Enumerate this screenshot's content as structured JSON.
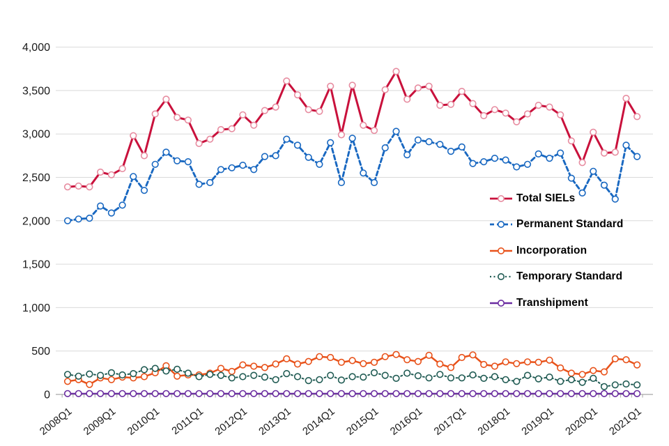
{
  "chart_data": {
    "type": "line",
    "title": "",
    "xlabel": "",
    "ylabel": "",
    "ylim": [
      0,
      4000
    ],
    "y_tick_step": 500,
    "grid": "horizontal",
    "legend_position": "inside-right",
    "y_tick_labels": [
      "0",
      "500",
      "1,000",
      "1,500",
      "2,000",
      "2,500",
      "3,000",
      "3,500",
      "4,000"
    ],
    "x_tick_labels": [
      "2008Q1",
      "2009Q1",
      "2010Q1",
      "2011Q1",
      "2012Q1",
      "2013Q1",
      "2014Q1",
      "2015Q1",
      "2016Q1",
      "2017Q1",
      "2018Q1",
      "2019Q1",
      "2020Q1",
      "2021Q1"
    ],
    "categories": [
      "2008Q1",
      "2008Q2",
      "2008Q3",
      "2008Q4",
      "2009Q1",
      "2009Q2",
      "2009Q3",
      "2009Q4",
      "2010Q1",
      "2010Q2",
      "2010Q3",
      "2010Q4",
      "2011Q1",
      "2011Q2",
      "2011Q3",
      "2011Q4",
      "2012Q1",
      "2012Q2",
      "2012Q3",
      "2012Q4",
      "2013Q1",
      "2013Q2",
      "2013Q3",
      "2013Q4",
      "2014Q1",
      "2014Q2",
      "2014Q3",
      "2014Q4",
      "2015Q1",
      "2015Q2",
      "2015Q3",
      "2015Q4",
      "2016Q1",
      "2016Q2",
      "2016Q3",
      "2016Q4",
      "2017Q1",
      "2017Q2",
      "2017Q3",
      "2017Q4",
      "2018Q1",
      "2018Q2",
      "2018Q3",
      "2018Q4",
      "2019Q1",
      "2019Q2",
      "2019Q3",
      "2019Q4",
      "2020Q1",
      "2020Q2",
      "2020Q3",
      "2020Q4",
      "2021Q1"
    ],
    "series": [
      {
        "name": "Total SIELs",
        "color": "#C9113C",
        "marker_color": "#E78CA0",
        "style": "solid",
        "values": [
          2390,
          2400,
          2390,
          2560,
          2530,
          2600,
          2980,
          2750,
          3230,
          3400,
          3190,
          3160,
          2890,
          2940,
          3050,
          3060,
          3220,
          3100,
          3270,
          3310,
          3610,
          3450,
          3280,
          3260,
          3550,
          2990,
          3560,
          3100,
          3040,
          3510,
          3720,
          3400,
          3530,
          3550,
          3330,
          3340,
          3490,
          3350,
          3210,
          3280,
          3240,
          3140,
          3230,
          3330,
          3310,
          3220,
          2920,
          2670,
          3020,
          2780,
          2790,
          3410,
          3200
        ]
      },
      {
        "name": "Permanent Standard",
        "color": "#1968C1",
        "marker_color": "#1968C1",
        "style": "dashed",
        "values": [
          2000,
          2020,
          2030,
          2170,
          2090,
          2180,
          2510,
          2350,
          2650,
          2790,
          2690,
          2680,
          2420,
          2440,
          2590,
          2610,
          2640,
          2590,
          2740,
          2750,
          2940,
          2870,
          2730,
          2650,
          2900,
          2440,
          2950,
          2550,
          2440,
          2840,
          3030,
          2760,
          2930,
          2910,
          2880,
          2800,
          2850,
          2660,
          2680,
          2720,
          2700,
          2620,
          2650,
          2770,
          2720,
          2780,
          2490,
          2320,
          2570,
          2410,
          2250,
          2870,
          2740
        ]
      },
      {
        "name": "Incorporation",
        "color": "#E8521A",
        "marker_color": "#E8521A",
        "style": "solid",
        "values": [
          150,
          170,
          115,
          190,
          170,
          200,
          190,
          205,
          250,
          330,
          210,
          225,
          225,
          245,
          300,
          265,
          340,
          325,
          310,
          350,
          410,
          350,
          380,
          435,
          425,
          370,
          390,
          355,
          370,
          435,
          460,
          400,
          380,
          450,
          350,
          310,
          425,
          455,
          345,
          325,
          375,
          355,
          375,
          370,
          395,
          305,
          245,
          230,
          275,
          260,
          410,
          400,
          340
        ]
      },
      {
        "name": "Temporary Standard",
        "color": "#205B53",
        "marker_color": "#205B53",
        "style": "dotted",
        "values": [
          230,
          210,
          235,
          220,
          250,
          225,
          240,
          285,
          300,
          270,
          290,
          245,
          205,
          230,
          220,
          190,
          205,
          220,
          200,
          170,
          240,
          205,
          160,
          170,
          220,
          165,
          205,
          200,
          250,
          220,
          185,
          245,
          215,
          190,
          230,
          190,
          190,
          225,
          185,
          205,
          170,
          150,
          220,
          180,
          200,
          150,
          170,
          140,
          185,
          90,
          110,
          120,
          110
        ]
      },
      {
        "name": "Transhipment",
        "color": "#6A2CA0",
        "marker_color": "#6A2CA0",
        "style": "solid",
        "values": [
          10,
          10,
          10,
          10,
          10,
          10,
          10,
          10,
          10,
          10,
          10,
          10,
          10,
          10,
          10,
          10,
          10,
          10,
          10,
          10,
          10,
          10,
          10,
          10,
          10,
          10,
          10,
          10,
          10,
          10,
          10,
          10,
          10,
          10,
          10,
          10,
          10,
          10,
          10,
          10,
          10,
          10,
          10,
          10,
          10,
          10,
          10,
          10,
          10,
          10,
          10,
          10,
          10
        ]
      }
    ]
  }
}
